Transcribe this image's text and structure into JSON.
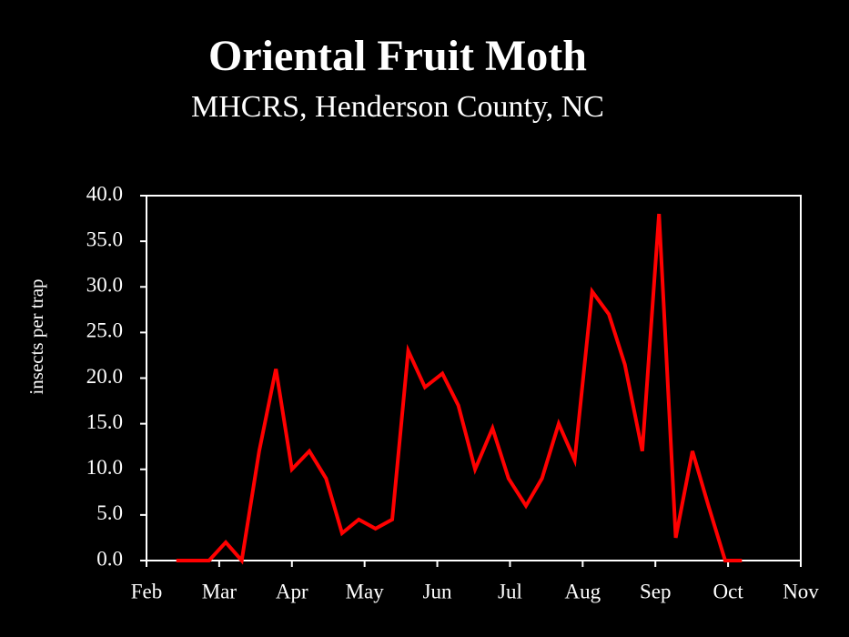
{
  "chart_data": {
    "type": "line",
    "title": "Oriental Fruit Moth",
    "subtitle": "MHCRS, Henderson County, NC",
    "y_label": "insects per trap",
    "x": [
      0.41,
      0.86,
      1.09,
      1.31,
      1.55,
      1.78,
      2.0,
      2.24,
      2.47,
      2.69,
      2.92,
      3.15,
      3.38,
      3.6,
      3.83,
      4.07,
      4.29,
      4.52,
      4.76,
      4.98,
      5.22,
      5.44,
      5.67,
      5.89,
      6.13,
      6.36,
      6.58,
      6.82,
      7.05,
      7.28,
      7.51,
      7.73,
      7.96,
      8.19
    ],
    "values": [
      0,
      0,
      2,
      0,
      12,
      21,
      10,
      12,
      9,
      3,
      4.5,
      3.5,
      4.5,
      23,
      19,
      20.5,
      17,
      10,
      14.5,
      9,
      6,
      9,
      15,
      11,
      29.5,
      27,
      21.5,
      12,
      38,
      2.5,
      12,
      6,
      0,
      0
    ],
    "color": "#ff0000",
    "xlim": [
      0,
      9
    ],
    "xticks": [
      {
        "value": 0,
        "label": "Feb"
      },
      {
        "value": 1,
        "label": "Mar"
      },
      {
        "value": 2,
        "label": "Apr"
      },
      {
        "value": 3,
        "label": "May"
      },
      {
        "value": 4,
        "label": "Jun"
      },
      {
        "value": 5,
        "label": "Jul"
      },
      {
        "value": 6,
        "label": "Aug"
      },
      {
        "value": 7,
        "label": "Sep"
      },
      {
        "value": 8,
        "label": "Oct"
      },
      {
        "value": 9,
        "label": "Nov"
      }
    ],
    "ylim": [
      0,
      40
    ],
    "yticks": [
      {
        "value": 0,
        "label": "0.0"
      },
      {
        "value": 5,
        "label": "5.0"
      },
      {
        "value": 10,
        "label": "10.0"
      },
      {
        "value": 15,
        "label": "15.0"
      },
      {
        "value": 20,
        "label": "20.0"
      },
      {
        "value": 25,
        "label": "25.0"
      },
      {
        "value": 30,
        "label": "30.0"
      },
      {
        "value": 35,
        "label": "35.0"
      },
      {
        "value": 40,
        "label": "40.0"
      }
    ]
  }
}
